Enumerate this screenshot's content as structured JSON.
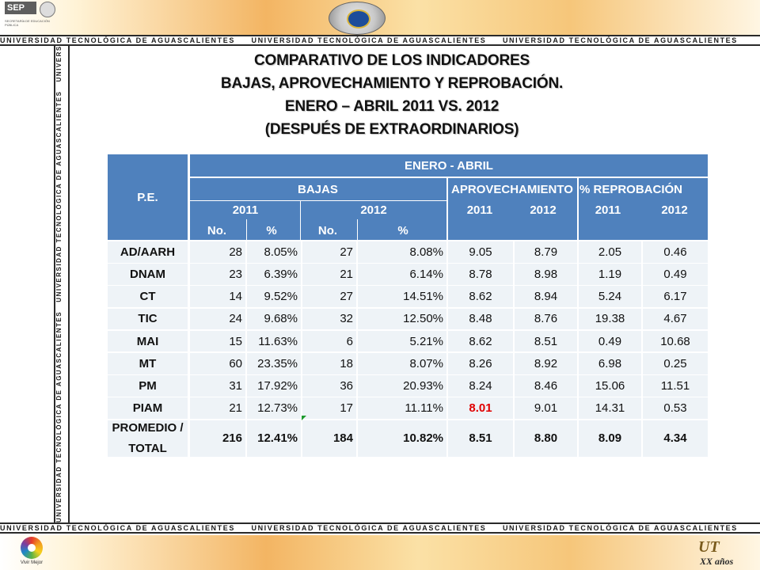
{
  "header": {
    "sep_logo": "SEP",
    "sep_subtitle": "SECRETARÍA DE EDUCACIÓN PÚBLICA",
    "strip_text": "UNIVERSIDAD TECNOLÓGICA DE AGUASCALIENTES"
  },
  "title": {
    "line1": "COMPARATIVO DE LOS INDICADORES",
    "line2": "BAJAS, APROVECHAMIENTO Y REPROBACIÓN.",
    "line3": "ENERO – ABRIL 2011 VS. 2012",
    "line4": "(DESPUÉS DE EXTRAORDINARIOS)"
  },
  "table": {
    "pe_header": "P.E.",
    "period_header": "ENERO - ABRIL",
    "group_headers": [
      "BAJAS",
      "APROVECHAMIENTO",
      "% REPROBACIÓN"
    ],
    "year_headers": [
      "2011",
      "2012",
      "2011",
      "2012",
      "2011",
      "2012"
    ],
    "sub_headers": [
      "No.",
      "%",
      "No.",
      "%"
    ],
    "rows": [
      {
        "pe": "AD/AARH",
        "b11n": "28",
        "b11p": "8.05%",
        "b12n": "27",
        "b12p": "8.08%",
        "a11": "9.05",
        "a12": "8.79",
        "r11": "2.05",
        "r12": "0.46"
      },
      {
        "pe": "DNAM",
        "b11n": "23",
        "b11p": "6.39%",
        "b12n": "21",
        "b12p": "6.14%",
        "a11": "8.78",
        "a12": "8.98",
        "r11": "1.19",
        "r12": "0.49"
      },
      {
        "pe": "CT",
        "b11n": "14",
        "b11p": "9.52%",
        "b12n": "27",
        "b12p": "14.51%",
        "a11": "8.62",
        "a12": "8.94",
        "r11": "5.24",
        "r12": "6.17"
      },
      {
        "pe": "TIC",
        "b11n": "24",
        "b11p": "9.68%",
        "b12n": "32",
        "b12p": "12.50%",
        "a11": "8.48",
        "a12": "8.76",
        "r11": "19.38",
        "r12": "4.67"
      },
      {
        "pe": "MAI",
        "b11n": "15",
        "b11p": "11.63%",
        "b12n": "6",
        "b12p": "5.21%",
        "a11": "8.62",
        "a12": "8.51",
        "r11": "0.49",
        "r12": "10.68"
      },
      {
        "pe": "MT",
        "b11n": "60",
        "b11p": "23.35%",
        "b12n": "18",
        "b12p": "8.07%",
        "a11": "8.26",
        "a12": "8.92",
        "r11": "6.98",
        "r12": "0.25"
      },
      {
        "pe": "PM",
        "b11n": "31",
        "b11p": "17.92%",
        "b12n": "36",
        "b12p": "20.93%",
        "a11": "8.24",
        "a12": "8.46",
        "r11": "15.06",
        "r12": "11.51"
      },
      {
        "pe": "PIAM",
        "b11n": "21",
        "b11p": "12.73%",
        "b12n": "17",
        "b12p": "11.11%",
        "a11": "8.01",
        "a12": "9.01",
        "r11": "14.31",
        "r12": "0.53"
      }
    ],
    "total": {
      "pe_line1": "PROMEDIO /",
      "pe_line2": "TOTAL",
      "b11n": "216",
      "b11p": "12.41%",
      "b12n": "184",
      "b12p": "10.82%",
      "a11": "8.51",
      "a12": "8.80",
      "r11": "8.09",
      "r12": "4.34"
    },
    "highlight_color": "#e00000",
    "header_color": "#4f81bd"
  },
  "footer": {
    "vivir_label": "Vivir Mejor",
    "xx_mark": "UT",
    "xx_sub": "XX años"
  }
}
